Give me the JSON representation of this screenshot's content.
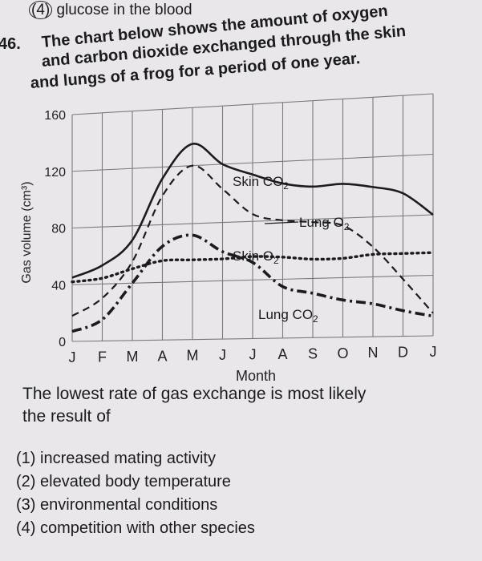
{
  "previous_choice": {
    "number": "(4)",
    "text": "glucose in the blood"
  },
  "question": {
    "number": "46.",
    "lines": [
      "The chart below shows the amount of oxygen",
      "and carbon dioxide exchanged through the skin",
      "and lungs of a frog for a period of one year."
    ],
    "prompt_lines": [
      "The lowest rate of gas exchange is most likely",
      "the result of"
    ],
    "choices": [
      "(1) increased mating activity",
      "(2) elevated body temperature",
      "(3) environmental conditions",
      "(4) competition with other species"
    ]
  },
  "chart_data": {
    "type": "line",
    "xlabel": "Month",
    "ylabel": "Gas volume (cm³)",
    "categories": [
      "J",
      "F",
      "M",
      "A",
      "M",
      "J",
      "J",
      "A",
      "S",
      "O",
      "N",
      "D",
      "J"
    ],
    "ylim": [
      0,
      160
    ],
    "yticks": [
      "0",
      "40",
      "80",
      "120",
      "160"
    ],
    "grid": true,
    "series": [
      {
        "name": "Skin CO2",
        "style": "solid",
        "values": [
          45,
          53,
          70,
          112,
          135,
          120,
          112,
          105,
          102,
          103,
          100,
          95,
          80
        ]
      },
      {
        "name": "Lung O2",
        "style": "dashed",
        "values": [
          18,
          30,
          55,
          100,
          120,
          103,
          85,
          80,
          78,
          75,
          60,
          38,
          15
        ]
      },
      {
        "name": "Skin O2",
        "style": "dotted",
        "values": [
          42,
          44,
          50,
          55,
          55,
          55,
          56,
          55,
          53,
          53,
          55,
          55,
          55
        ]
      },
      {
        "name": "Lung CO2",
        "style": "dash-dot",
        "values": [
          7,
          15,
          40,
          65,
          72,
          60,
          52,
          35,
          30,
          25,
          22,
          17,
          13
        ]
      }
    ]
  }
}
